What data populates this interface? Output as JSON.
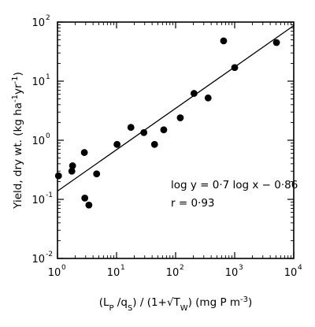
{
  "chart_data": {
    "type": "scatter",
    "xlabel": "(L_P /q_S) / (1+√T_W) (mg P m^-3)",
    "ylabel": "Yield, dry wt. (kg ha^-1 yr^-1)",
    "xscale": "log",
    "yscale": "log",
    "xlim": [
      1,
      10000
    ],
    "ylim": [
      0.01,
      100
    ],
    "x_ticks": [
      {
        "base": "10",
        "exp": "0"
      },
      {
        "base": "10",
        "exp": "1"
      },
      {
        "base": "10",
        "exp": "2"
      },
      {
        "base": "10",
        "exp": "3"
      },
      {
        "base": "10",
        "exp": "4"
      }
    ],
    "y_ticks": [
      {
        "base": "10",
        "exp": "-2"
      },
      {
        "base": "10",
        "exp": "-1"
      },
      {
        "base": "10",
        "exp": "0"
      },
      {
        "base": "10",
        "exp": "1"
      },
      {
        "base": "10",
        "exp": "2"
      }
    ],
    "points": [
      {
        "x": 1.04,
        "y": 0.25
      },
      {
        "x": 1.75,
        "y": 0.3
      },
      {
        "x": 1.8,
        "y": 0.37
      },
      {
        "x": 2.85,
        "y": 0.62
      },
      {
        "x": 2.9,
        "y": 0.105
      },
      {
        "x": 3.4,
        "y": 0.08
      },
      {
        "x": 4.6,
        "y": 0.27
      },
      {
        "x": 10.2,
        "y": 0.85
      },
      {
        "x": 17.5,
        "y": 1.65
      },
      {
        "x": 29,
        "y": 1.35
      },
      {
        "x": 44,
        "y": 0.85
      },
      {
        "x": 63,
        "y": 1.5
      },
      {
        "x": 120,
        "y": 2.4
      },
      {
        "x": 205,
        "y": 6.2
      },
      {
        "x": 355,
        "y": 5.2
      },
      {
        "x": 650,
        "y": 48
      },
      {
        "x": 1000,
        "y": 17
      },
      {
        "x": 5100,
        "y": 45
      }
    ],
    "regression": {
      "slope": 0.7,
      "intercept": -0.86
    },
    "annotations": [
      "log y = 0·7 log x − 0·86",
      "r = 0·93"
    ],
    "grid": false
  }
}
